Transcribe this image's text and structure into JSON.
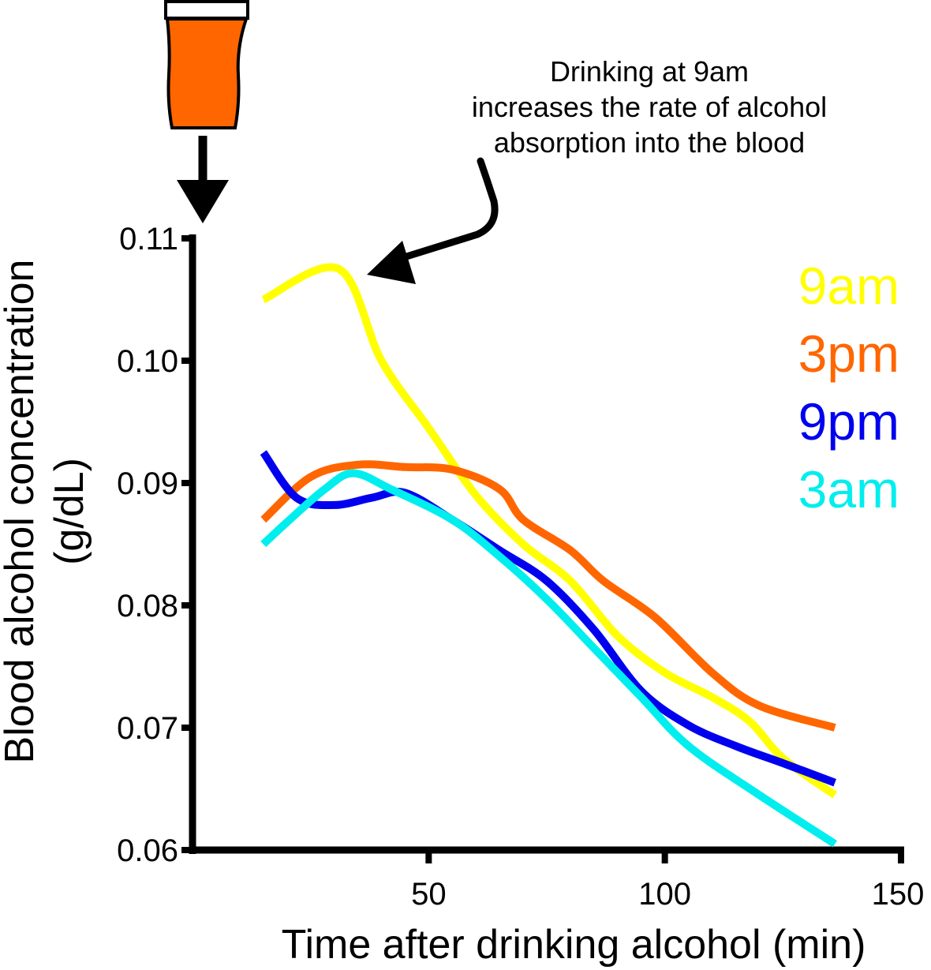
{
  "chart_data": {
    "type": "line",
    "xlabel": "Time after drinking alcohol (min)",
    "ylabel_line1": "Blood alcohol concentration",
    "ylabel_line2": "(g/dL)",
    "xlim": [
      0,
      150
    ],
    "ylim": [
      0.06,
      0.11
    ],
    "x_ticks": [
      {
        "value": 50,
        "label": "50"
      },
      {
        "value": 100,
        "label": "100"
      },
      {
        "value": 150,
        "label": "150"
      }
    ],
    "y_ticks": [
      {
        "value": 0.06,
        "label": "0.06"
      },
      {
        "value": 0.07,
        "label": "0.07"
      },
      {
        "value": 0.08,
        "label": "0.08"
      },
      {
        "value": 0.09,
        "label": "0.09"
      },
      {
        "value": 0.1,
        "label": "0.10"
      },
      {
        "value": 0.11,
        "label": "0.11"
      }
    ],
    "grid": false,
    "legend_position": "top-right",
    "series": [
      {
        "name": "9am",
        "color": "#ffff00",
        "points": [
          [
            15,
            0.105
          ],
          [
            31,
            0.1075
          ],
          [
            40,
            0.1
          ],
          [
            50,
            0.0945
          ],
          [
            60,
            0.089
          ],
          [
            70,
            0.085
          ],
          [
            80,
            0.082
          ],
          [
            90,
            0.0775
          ],
          [
            100,
            0.0745
          ],
          [
            110,
            0.0725
          ],
          [
            118,
            0.0705
          ],
          [
            125,
            0.0675
          ],
          [
            136,
            0.0645
          ]
        ]
      },
      {
        "name": "3pm",
        "color": "#ff6600",
        "points": [
          [
            15,
            0.087
          ],
          [
            25,
            0.0905
          ],
          [
            35,
            0.0915
          ],
          [
            45,
            0.0913
          ],
          [
            55,
            0.0911
          ],
          [
            65,
            0.0895
          ],
          [
            70,
            0.087
          ],
          [
            80,
            0.0845
          ],
          [
            87,
            0.082
          ],
          [
            98,
            0.079
          ],
          [
            110,
            0.0745
          ],
          [
            120,
            0.0718
          ],
          [
            136,
            0.07
          ]
        ]
      },
      {
        "name": "9pm",
        "color": "#0000ee",
        "points": [
          [
            15,
            0.0925
          ],
          [
            22,
            0.0888
          ],
          [
            30,
            0.0882
          ],
          [
            38,
            0.0888
          ],
          [
            45,
            0.0892
          ],
          [
            55,
            0.087
          ],
          [
            65,
            0.0845
          ],
          [
            75,
            0.082
          ],
          [
            85,
            0.078
          ],
          [
            95,
            0.073
          ],
          [
            105,
            0.0702
          ],
          [
            115,
            0.0685
          ],
          [
            125,
            0.0671
          ],
          [
            136,
            0.0655
          ]
        ]
      },
      {
        "name": "3am",
        "color": "#00eeee",
        "points": [
          [
            15,
            0.085
          ],
          [
            20,
            0.0868
          ],
          [
            28,
            0.0895
          ],
          [
            34,
            0.0908
          ],
          [
            42,
            0.0895
          ],
          [
            55,
            0.087
          ],
          [
            65,
            0.084
          ],
          [
            75,
            0.0805
          ],
          [
            85,
            0.0765
          ],
          [
            95,
            0.0725
          ],
          [
            105,
            0.0685
          ],
          [
            120,
            0.0645
          ],
          [
            136,
            0.0605
          ]
        ]
      }
    ],
    "annotation": {
      "lines": [
        "Drinking at 9am",
        "increases the rate of alcohol",
        "absorption into the blood"
      ]
    }
  },
  "graphics": {
    "drink_icon": "beer-glass-icon",
    "drink_color": "#ff6600",
    "arrow_color": "#000000"
  }
}
